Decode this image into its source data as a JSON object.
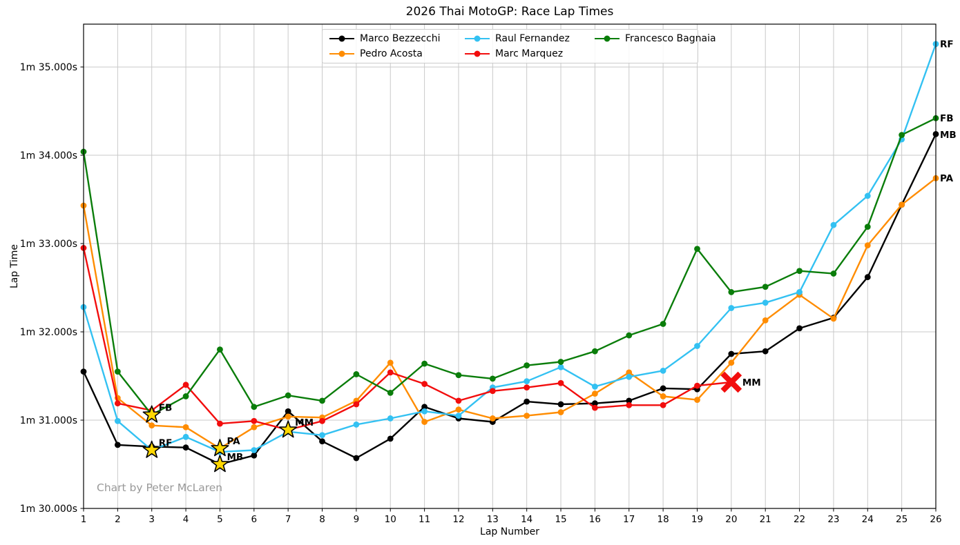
{
  "title": "2026 Thai MotoGP: Race Lap Times",
  "signature": "Chart by Peter McLaren",
  "chart_data": {
    "type": "line",
    "title": "2026 Thai MotoGP: Race Lap Times",
    "xlabel": "Lap Number",
    "ylabel": "Lap Time",
    "grid": true,
    "legend_position": "top-center",
    "laps": [
      1,
      2,
      3,
      4,
      5,
      6,
      7,
      8,
      9,
      10,
      11,
      12,
      13,
      14,
      15,
      16,
      17,
      18,
      19,
      20,
      21,
      22,
      23,
      24,
      25,
      26
    ],
    "xlim": [
      1,
      26
    ],
    "ylim_seconds": [
      90.0,
      95.485
    ],
    "ytick_seconds": [
      90,
      91,
      92,
      93,
      94,
      95
    ],
    "ytick_labels": [
      "1m 30.000s",
      "1m 31.000s",
      "1m 32.000s",
      "1m 33.000s",
      "1m 34.000s",
      "1m 35.000s"
    ],
    "series": [
      {
        "name": "Marco Bezzecchi",
        "color": "#000000",
        "values": [
          91.55,
          90.72,
          90.7,
          90.69,
          90.5,
          90.6,
          91.1,
          90.76,
          90.57,
          90.79,
          91.15,
          91.02,
          90.98,
          91.21,
          91.18,
          91.19,
          91.22,
          91.36,
          91.35,
          91.75,
          91.78,
          92.04,
          92.16,
          92.62,
          93.44,
          94.24
        ]
      },
      {
        "name": "Pedro Acosta",
        "color": "#ff8c00",
        "values": [
          93.43,
          91.25,
          90.94,
          90.92,
          90.68,
          90.92,
          91.04,
          91.03,
          91.22,
          91.65,
          90.98,
          91.12,
          91.02,
          91.05,
          91.09,
          91.3,
          91.54,
          91.27,
          91.23,
          91.65,
          92.13,
          92.42,
          92.15,
          92.98,
          93.44,
          93.74
        ]
      },
      {
        "name": "Raul Fernandez",
        "color": "#33c1f2",
        "values": [
          92.28,
          90.99,
          90.66,
          90.81,
          90.64,
          90.66,
          90.87,
          90.83,
          90.95,
          91.02,
          91.1,
          91.05,
          91.37,
          91.44,
          91.6,
          91.38,
          91.49,
          91.56,
          91.84,
          92.27,
          92.33,
          92.45,
          93.21,
          93.54,
          94.18,
          95.26
        ]
      },
      {
        "name": "Marc Marquez",
        "color": "#f20d0d",
        "values": [
          92.95,
          91.19,
          91.11,
          91.4,
          90.96,
          90.99,
          90.89,
          90.99,
          91.18,
          91.54,
          91.41,
          91.22,
          91.33,
          91.37,
          91.42,
          91.14,
          91.17,
          91.17,
          91.39,
          91.43
        ]
      },
      {
        "name": "Francesco Bagnaia",
        "color": "#0a7d0a",
        "values": [
          94.04,
          91.55,
          91.06,
          91.27,
          91.8,
          91.15,
          91.28,
          91.22,
          91.52,
          91.31,
          91.64,
          91.51,
          91.47,
          91.62,
          91.66,
          91.78,
          91.96,
          92.09,
          92.94,
          92.45,
          92.51,
          92.69,
          92.66,
          93.19,
          94.23,
          94.42
        ]
      }
    ],
    "annotations": {
      "fastest_lap_stars": [
        {
          "series": "Francesco Bagnaia",
          "label": "FB",
          "lap": 3,
          "seconds": 91.06
        },
        {
          "series": "Raul Fernandez",
          "label": "RF",
          "lap": 3,
          "seconds": 90.66
        },
        {
          "series": "Pedro Acosta",
          "label": "PA",
          "lap": 5,
          "seconds": 90.68
        },
        {
          "series": "Marco Bezzecchi",
          "label": "MB",
          "lap": 5,
          "seconds": 90.5
        },
        {
          "series": "Marc Marquez",
          "label": "MM",
          "lap": 7,
          "seconds": 90.89
        }
      ],
      "star_color": "#FFD700",
      "dnf_x": {
        "series": "Marc Marquez",
        "label": "MM",
        "lap": 20,
        "seconds": 91.43,
        "color": "#f20d0d"
      },
      "end_labels": [
        {
          "label": "RF",
          "seconds": 95.26
        },
        {
          "label": "FB",
          "seconds": 94.42
        },
        {
          "label": "MB",
          "seconds": 94.23
        },
        {
          "label": "PA",
          "seconds": 93.74
        }
      ]
    }
  }
}
